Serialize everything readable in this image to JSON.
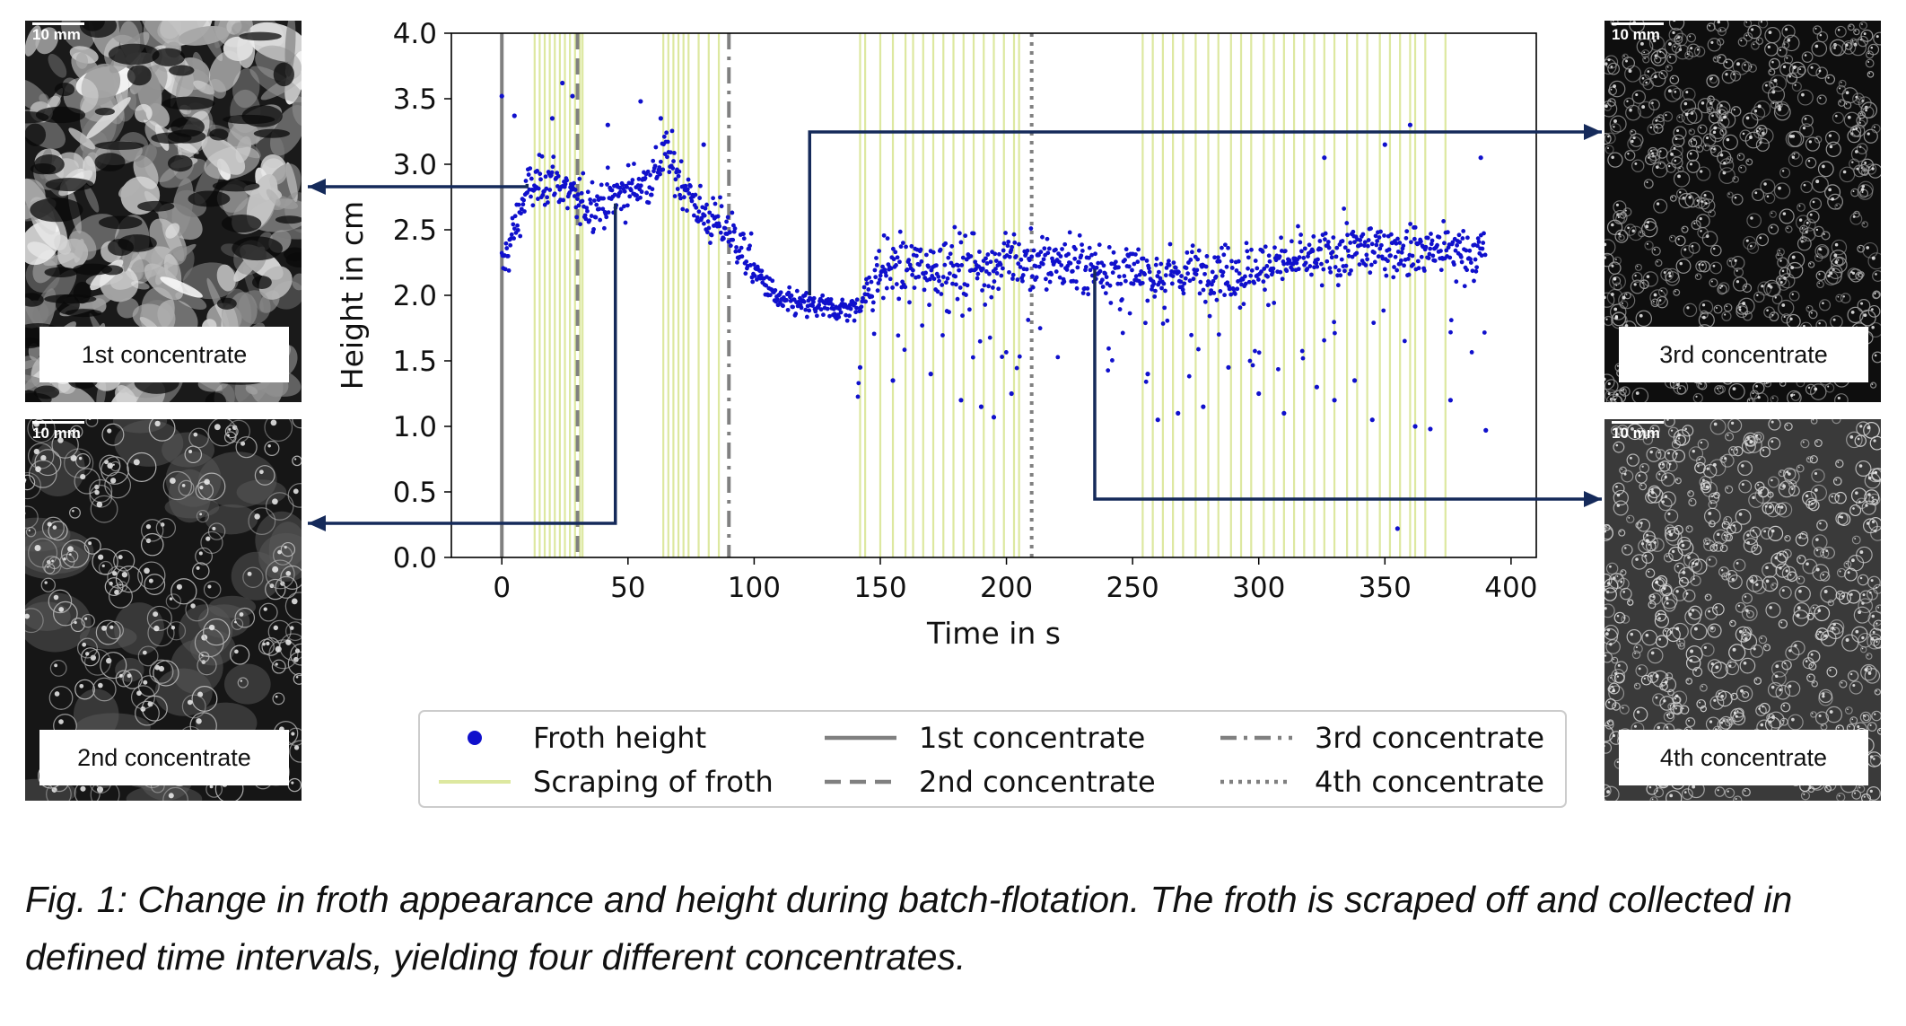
{
  "images": [
    {
      "scale_label": "10 mm",
      "label": "1st concentrate",
      "tone": "bright-chunky"
    },
    {
      "scale_label": "10 mm",
      "label": "2nd concentrate",
      "tone": "dark-bubbly"
    },
    {
      "scale_label": "10 mm",
      "label": "3rd concentrate",
      "tone": "dark-fine"
    },
    {
      "scale_label": "10 mm",
      "label": "4th concentrate",
      "tone": "grey-fine"
    }
  ],
  "caption": "Fig. 1: Change in froth appearance and height during batch-flotation. The froth is scraped off and collected in defined time intervals, yielding four different concentrates.",
  "chart_data": {
    "type": "scatter",
    "title": "",
    "xlabel": "Time in s",
    "ylabel": "Height in cm",
    "xlim": [
      -20,
      410
    ],
    "ylim": [
      0,
      4.0
    ],
    "xticks": [
      "0",
      "50",
      "100",
      "150",
      "200",
      "250",
      "300",
      "350",
      "400"
    ],
    "yticks": [
      "0.0",
      "0.5",
      "1.0",
      "1.5",
      "2.0",
      "2.5",
      "3.0",
      "3.5",
      "4.0"
    ],
    "grid": false,
    "legend_position": "bottom",
    "colors": {
      "points": "#1010cc",
      "scraping": "#dde8a0",
      "concentrate_lines": "#808080",
      "arrows": "#152a5a"
    },
    "series": [
      {
        "name": "Froth height",
        "trend": [
          [
            0,
            2.2
          ],
          [
            5,
            2.5
          ],
          [
            10,
            2.8
          ],
          [
            20,
            2.9
          ],
          [
            30,
            2.7
          ],
          [
            40,
            2.7
          ],
          [
            50,
            2.8
          ],
          [
            60,
            2.9
          ],
          [
            65,
            3.1
          ],
          [
            70,
            2.9
          ],
          [
            80,
            2.6
          ],
          [
            90,
            2.5
          ],
          [
            100,
            2.2
          ],
          [
            110,
            1.95
          ],
          [
            130,
            1.9
          ],
          [
            140,
            1.9
          ],
          [
            150,
            2.2
          ],
          [
            200,
            2.25
          ],
          [
            230,
            2.25
          ],
          [
            250,
            2.15
          ],
          [
            300,
            2.2
          ],
          [
            340,
            2.35
          ],
          [
            370,
            2.35
          ],
          [
            390,
            2.3
          ]
        ],
        "outliers": [
          [
            0,
            3.52
          ],
          [
            5,
            3.37
          ],
          [
            20,
            3.35
          ],
          [
            24,
            3.62
          ],
          [
            28,
            3.52
          ],
          [
            42,
            3.3
          ],
          [
            55,
            3.48
          ],
          [
            63,
            3.35
          ],
          [
            80,
            3.15
          ],
          [
            142,
            1.45
          ],
          [
            155,
            1.35
          ],
          [
            170,
            1.4
          ],
          [
            182,
            1.2
          ],
          [
            190,
            1.15
          ],
          [
            195,
            1.07
          ],
          [
            202,
            1.25
          ],
          [
            256,
            1.4
          ],
          [
            260,
            1.05
          ],
          [
            268,
            1.1
          ],
          [
            278,
            1.15
          ],
          [
            288,
            1.45
          ],
          [
            300,
            1.25
          ],
          [
            310,
            1.1
          ],
          [
            323,
            1.3
          ],
          [
            330,
            1.2
          ],
          [
            338,
            1.35
          ],
          [
            345,
            1.05
          ],
          [
            355,
            0.22
          ],
          [
            362,
            1.0
          ],
          [
            368,
            0.98
          ],
          [
            376,
            1.2
          ],
          [
            390,
            0.97
          ],
          [
            326,
            3.05
          ],
          [
            350,
            3.15
          ],
          [
            360,
            3.3
          ],
          [
            388,
            3.05
          ]
        ]
      },
      {
        "name": "Scraping of froth",
        "x": [
          13,
          15,
          17,
          19,
          21,
          23,
          25,
          27,
          29,
          31,
          32,
          64,
          66,
          68,
          70,
          72,
          74,
          78,
          82,
          86,
          142,
          144,
          150,
          155,
          160,
          163,
          167,
          171,
          175,
          179,
          183,
          187,
          191,
          195,
          199,
          203,
          205,
          254,
          258,
          262,
          266,
          270,
          275,
          280,
          284,
          289,
          293,
          297,
          302,
          306,
          310,
          314,
          318,
          322,
          326,
          330,
          335,
          339,
          343,
          348,
          352,
          356,
          360,
          362,
          366,
          374
        ]
      },
      {
        "name": "1st concentrate",
        "x": 0,
        "style": "solid"
      },
      {
        "name": "2nd concentrate",
        "x": 30,
        "style": "dashed"
      },
      {
        "name": "3rd concentrate",
        "x": 90,
        "style": "dashdot"
      },
      {
        "name": "4th concentrate",
        "x": 210,
        "style": "dotted"
      }
    ],
    "arrows": [
      {
        "target": "1st concentrate",
        "from_x": 10,
        "from_y": 2.85
      },
      {
        "target": "2nd concentrate",
        "from_x": 45,
        "from_y": 2.7
      },
      {
        "target": "3rd concentrate",
        "from_x": 122,
        "from_y": 2.0
      },
      {
        "target": "4th concentrate",
        "from_x": 235,
        "from_y": 2.2
      }
    ]
  }
}
